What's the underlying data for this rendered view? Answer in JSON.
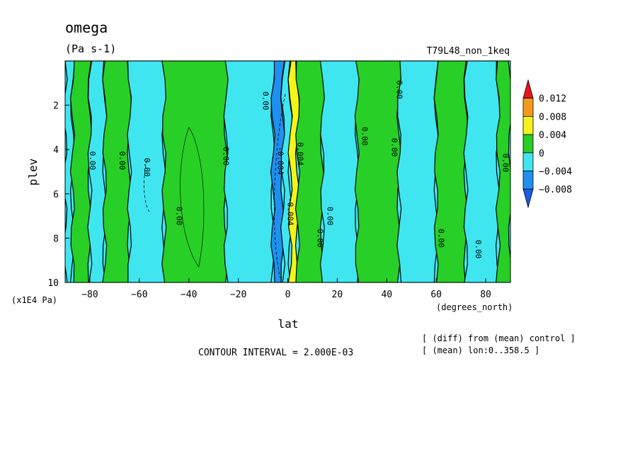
{
  "chart_data": {
    "type": "contour",
    "title": "omega",
    "units": "(Pa s-1)",
    "run_label": "T79L48_non_1keq",
    "xlabel": "lat",
    "xunits": "(degrees_north)",
    "ylabel": "plev",
    "yunits": "(x1E4 Pa)",
    "xlim": [
      -90,
      90
    ],
    "ylim": [
      0,
      10
    ],
    "y_inverted": true,
    "xticks": [
      -80,
      -60,
      -40,
      -20,
      0,
      20,
      40,
      60,
      80
    ],
    "yticks": [
      2,
      4,
      6,
      8,
      10
    ],
    "contour_interval_text": "CONTOUR INTERVAL = 2.000E-03",
    "notes": [
      "[ (diff) from (mean) control ]",
      "[ (mean) lon:0..358.5 ]"
    ],
    "contour_labels": [
      "0.00",
      "-0.004",
      "0.004"
    ],
    "colorbar": {
      "labels": [
        "0.012",
        "0.008",
        "0.004",
        "0",
        "-0.004",
        "-0.008"
      ],
      "colors": [
        "#e8141c",
        "#f59a1b",
        "#f4f41b",
        "#27cf27",
        "#3fe6f0",
        "#1e90f0",
        "#1a5ae6"
      ]
    },
    "bands": [
      {
        "x0": -90,
        "x1": -87,
        "level": "neg"
      },
      {
        "x0": -87,
        "x1": -80,
        "level": "pos"
      },
      {
        "x0": -80,
        "x1": -74,
        "level": "neg"
      },
      {
        "x0": -74,
        "x1": -64,
        "level": "pos"
      },
      {
        "x0": -64,
        "x1": -50,
        "level": "neg"
      },
      {
        "x0": -50,
        "x1": -25,
        "level": "pos"
      },
      {
        "x0": -25,
        "x1": -6,
        "level": "neg"
      },
      {
        "x0": -6,
        "x1": -2,
        "level": "neg2"
      },
      {
        "x0": -2,
        "x1": 1,
        "level": "neg"
      },
      {
        "x0": 1,
        "x1": 4,
        "level": "pos2"
      },
      {
        "x0": 4,
        "x1": 14,
        "level": "pos"
      },
      {
        "x0": 14,
        "x1": 28,
        "level": "neg"
      },
      {
        "x0": 28,
        "x1": 45,
        "level": "pos"
      },
      {
        "x0": 45,
        "x1": 60,
        "level": "neg"
      },
      {
        "x0": 60,
        "x1": 72,
        "level": "pos"
      },
      {
        "x0": 72,
        "x1": 85,
        "level": "neg"
      },
      {
        "x0": 85,
        "x1": 90,
        "level": "pos"
      }
    ]
  }
}
